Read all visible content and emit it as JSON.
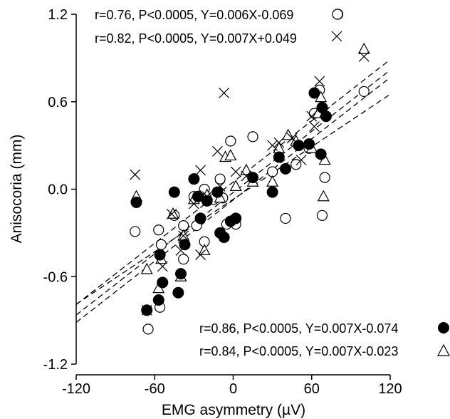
{
  "chart_data": {
    "type": "scatter",
    "xlabel": "EMG asymmetry (µV)",
    "ylabel": "Anisocoria (mm)",
    "xlim": [
      -120,
      120
    ],
    "ylim": [
      -1.2,
      1.2
    ],
    "x_ticks": [
      "-120",
      "-60",
      "0",
      "60",
      "120"
    ],
    "y_ticks": [
      "1.2",
      "0.6",
      "0.0",
      "-0.6",
      "-1.2"
    ],
    "x_tick_values": [
      -120,
      -60,
      0,
      60,
      120
    ],
    "y_tick_values": [
      1.2,
      0.6,
      0.0,
      -0.6,
      -1.2
    ],
    "series": [
      {
        "marker": "open-circle",
        "legend": "r=0.76, P<0.0005, Y=0.006X-0.069",
        "slope": 0.006,
        "intercept": -0.069,
        "points": [
          [
            -65,
            -0.96
          ],
          [
            -56,
            -0.81
          ],
          [
            -75,
            -0.29
          ],
          [
            -57,
            -0.28
          ],
          [
            -55,
            -0.38
          ],
          [
            -45,
            -0.18
          ],
          [
            -38,
            -0.48
          ],
          [
            -38,
            -0.25
          ],
          [
            -30,
            -0.05
          ],
          [
            -28,
            -0.25
          ],
          [
            -22,
            -0.36
          ],
          [
            -22,
            0.0
          ],
          [
            -15,
            -0.07
          ],
          [
            -10,
            0.07
          ],
          [
            -8,
            -0.06
          ],
          [
            -5,
            -0.24
          ],
          [
            -2,
            0.33
          ],
          [
            2,
            -0.24
          ],
          [
            15,
            0.36
          ],
          [
            30,
            0.12
          ],
          [
            40,
            -0.2
          ],
          [
            48,
            0.17
          ],
          [
            58,
            0.28
          ],
          [
            62,
            0.52
          ],
          [
            66,
            0.68
          ],
          [
            68,
            -0.18
          ],
          [
            70,
            0.08
          ],
          [
            80,
            1.2
          ],
          [
            100,
            0.67
          ]
        ]
      },
      {
        "marker": "open-triangle",
        "legend": "r=0.84, P<0.0005, Y=0.007X-0.023",
        "slope": 0.007,
        "intercept": -0.023,
        "points": [
          [
            -74,
            -0.05
          ],
          [
            -66,
            -0.55
          ],
          [
            -57,
            -0.68
          ],
          [
            -55,
            -0.48
          ],
          [
            -46,
            -0.17
          ],
          [
            -40,
            -0.6
          ],
          [
            -38,
            -0.32
          ],
          [
            -30,
            -0.07
          ],
          [
            -25,
            -0.05
          ],
          [
            -22,
            -0.42
          ],
          [
            -20,
            -0.04
          ],
          [
            -10,
            -0.06
          ],
          [
            -6,
            0.22
          ],
          [
            -2,
            0.23
          ],
          [
            2,
            0.02
          ],
          [
            10,
            0.13
          ],
          [
            15,
            0.05
          ],
          [
            30,
            0.05
          ],
          [
            35,
            0.28
          ],
          [
            42,
            0.37
          ],
          [
            48,
            0.33
          ],
          [
            60,
            0.28
          ],
          [
            65,
            0.52
          ],
          [
            67,
            0.63
          ],
          [
            69,
            -0.05
          ],
          [
            70,
            0.2
          ],
          [
            100,
            0.96
          ]
        ]
      },
      {
        "marker": "filled-circle",
        "legend": "r=0.86, P<0.0005, Y=0.007X-0.074",
        "slope": 0.007,
        "intercept": -0.074,
        "points": [
          [
            -74,
            -0.09
          ],
          [
            -66,
            -0.83
          ],
          [
            -57,
            -0.76
          ],
          [
            -56,
            -0.45
          ],
          [
            -54,
            -0.64
          ],
          [
            -45,
            -0.02
          ],
          [
            -42,
            -0.71
          ],
          [
            -40,
            -0.58
          ],
          [
            -37,
            -0.38
          ],
          [
            -30,
            0.07
          ],
          [
            -27,
            -0.05
          ],
          [
            -25,
            -0.2
          ],
          [
            -20,
            -0.08
          ],
          [
            -12,
            -0.02
          ],
          [
            -10,
            -0.3
          ],
          [
            -7,
            -0.33
          ],
          [
            -2,
            -0.22
          ],
          [
            2,
            -0.2
          ],
          [
            15,
            0.08
          ],
          [
            30,
            -0.02
          ],
          [
            35,
            0.22
          ],
          [
            40,
            0.14
          ],
          [
            50,
            0.3
          ],
          [
            58,
            0.31
          ],
          [
            62,
            0.66
          ],
          [
            67,
            0.24
          ],
          [
            68,
            0.56
          ],
          [
            71,
            0.5
          ]
        ]
      },
      {
        "marker": "cross",
        "legend": "r=0.82, P<0.0005, Y=0.007X+0.049",
        "slope": 0.007,
        "intercept": 0.049,
        "points": [
          [
            -75,
            0.1
          ],
          [
            -66,
            -0.83
          ],
          [
            -54,
            -0.53
          ],
          [
            -47,
            -0.17
          ],
          [
            -40,
            -0.42
          ],
          [
            -38,
            -0.32
          ],
          [
            -30,
            -0.1
          ],
          [
            -25,
            0.13
          ],
          [
            -25,
            -0.45
          ],
          [
            -20,
            -0.05
          ],
          [
            -12,
            0.26
          ],
          [
            -10,
            0.02
          ],
          [
            -7,
            0.66
          ],
          [
            2,
            0.12
          ],
          [
            10,
            0.09
          ],
          [
            30,
            0.3
          ],
          [
            35,
            0.32
          ],
          [
            45,
            0.35
          ],
          [
            52,
            0.2
          ],
          [
            60,
            0.5
          ],
          [
            62,
            0.43
          ],
          [
            66,
            0.74
          ],
          [
            70,
            0.53
          ],
          [
            100,
            0.91
          ]
        ]
      }
    ],
    "legend_top": [
      "r=0.76, P<0.0005, Y=0.006X-0.069",
      "r=0.82, P<0.0005, Y=0.007X+0.049"
    ],
    "legend_bottom": [
      "r=0.86, P<0.0005, Y=0.007X-0.074",
      "r=0.84, P<0.0005, Y=0.007X-0.023"
    ]
  }
}
